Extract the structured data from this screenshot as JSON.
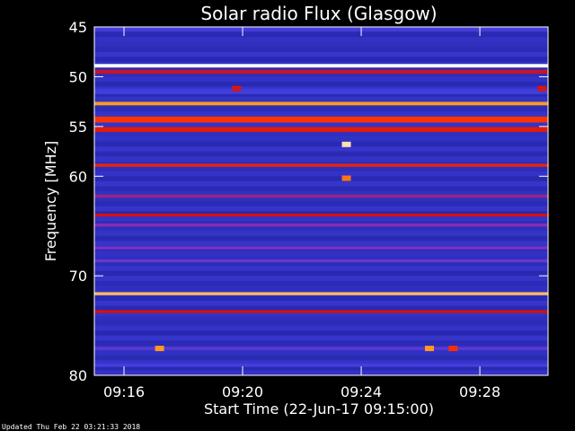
{
  "chart_data": {
    "type": "heatmap",
    "title": "Solar radio Flux (Glasgow)",
    "xlabel": "Start Time (22-Jun-17 09:15:00)",
    "ylabel": "Frequency [MHz]",
    "footer": "Updated Thu Feb 22 03:21:33 2018",
    "x_ticks": [
      "09:16",
      "09:20",
      "09:24",
      "09:28"
    ],
    "x_tick_minutes": [
      16,
      20,
      24,
      28
    ],
    "xlim_minutes": [
      15,
      30.3
    ],
    "y_ticks": [
      45,
      50,
      55,
      60,
      70,
      80
    ],
    "ylim": [
      45,
      80
    ],
    "background_level": 0.18,
    "bands": [
      {
        "freq": 45.2,
        "level": 0.3,
        "width_mhz": 0.4
      },
      {
        "freq": 48.9,
        "level": 1.0,
        "width_mhz": 0.35
      },
      {
        "freq": 49.5,
        "level": 0.55,
        "width_mhz": 0.4
      },
      {
        "freq": 51.5,
        "level": 0.28,
        "width_mhz": 0.5
      },
      {
        "freq": 52.7,
        "level": 0.85,
        "width_mhz": 0.35
      },
      {
        "freq": 54.3,
        "level": 0.72,
        "width_mhz": 0.6
      },
      {
        "freq": 55.3,
        "level": 0.62,
        "width_mhz": 0.5
      },
      {
        "freq": 58.9,
        "level": 0.66,
        "width_mhz": 0.3
      },
      {
        "freq": 62.0,
        "level": 0.48,
        "width_mhz": 0.3
      },
      {
        "freq": 63.9,
        "level": 0.58,
        "width_mhz": 0.3
      },
      {
        "freq": 64.9,
        "level": 0.44,
        "width_mhz": 0.3
      },
      {
        "freq": 67.2,
        "level": 0.42,
        "width_mhz": 0.3
      },
      {
        "freq": 68.5,
        "level": 0.38,
        "width_mhz": 0.3
      },
      {
        "freq": 71.8,
        "level": 0.9,
        "width_mhz": 0.3
      },
      {
        "freq": 73.6,
        "level": 0.58,
        "width_mhz": 0.3
      },
      {
        "freq": 77.3,
        "level": 0.35,
        "width_mhz": 0.3
      },
      {
        "freq": 79.0,
        "level": 0.3,
        "width_mhz": 0.3
      }
    ],
    "bursts": [
      {
        "minute": 23.5,
        "freq": 56.8,
        "level": 0.95
      },
      {
        "minute": 23.5,
        "freq": 60.2,
        "level": 0.8
      },
      {
        "minute": 17.2,
        "freq": 77.3,
        "level": 0.85
      },
      {
        "minute": 26.3,
        "freq": 77.3,
        "level": 0.85
      },
      {
        "minute": 27.1,
        "freq": 77.3,
        "level": 0.7
      },
      {
        "minute": 19.8,
        "freq": 51.2,
        "level": 0.6
      },
      {
        "minute": 30.1,
        "freq": 51.2,
        "level": 0.6
      }
    ],
    "colormap": [
      "#000000",
      "#2020a0",
      "#4040e0",
      "#8030c0",
      "#d01010",
      "#ff3000",
      "#ffa020",
      "#ffffff"
    ]
  }
}
